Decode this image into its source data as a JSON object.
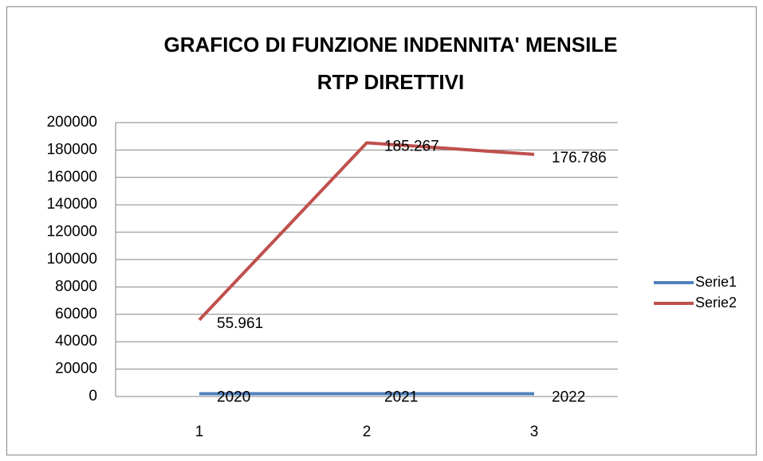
{
  "chart_data": {
    "type": "line",
    "title": [
      "GRAFICO DI FUNZIONE INDENNITA' MENSILE",
      "RTP DIRETTIVI"
    ],
    "categories": [
      "1",
      "2",
      "3"
    ],
    "series": [
      {
        "name": "Serie1",
        "color": "#4f81bd",
        "values": [
          2020,
          2021,
          2022
        ]
      },
      {
        "name": "Serie2",
        "color": "#c0504d",
        "values": [
          55961,
          185267,
          176786
        ],
        "value_labels": [
          "55.961",
          "185.267",
          "176.786"
        ]
      }
    ],
    "ylim": [
      0,
      200000
    ],
    "yticks": [
      0,
      20000,
      40000,
      60000,
      80000,
      100000,
      120000,
      140000,
      160000,
      180000,
      200000
    ],
    "grid": true,
    "legend": "right"
  }
}
